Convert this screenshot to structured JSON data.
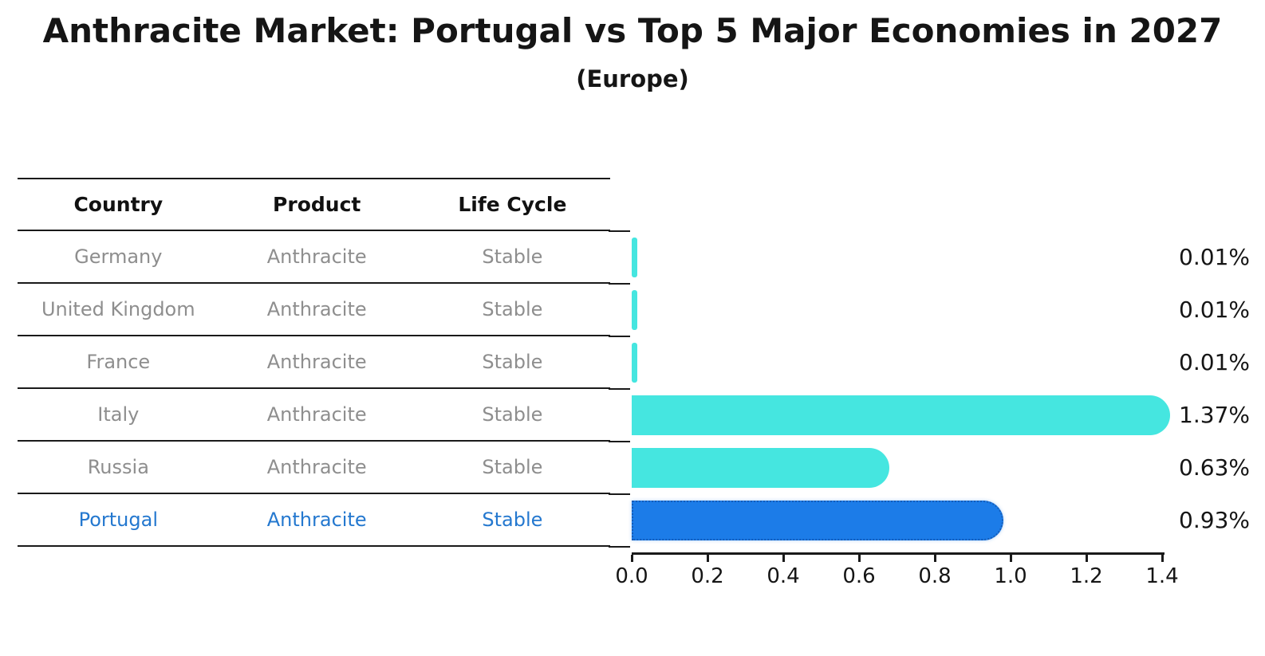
{
  "title": "Anthracite Market: Portugal vs Top 5 Major Economies in 2027",
  "subtitle": "(Europe)",
  "table": {
    "headers": [
      "Country",
      "Product",
      "Life Cycle"
    ],
    "rows": [
      {
        "country": "Germany",
        "product": "Anthracite",
        "life_cycle": "Stable",
        "highlight": false
      },
      {
        "country": "United Kingdom",
        "product": "Anthracite",
        "life_cycle": "Stable",
        "highlight": false
      },
      {
        "country": "France",
        "product": "Anthracite",
        "life_cycle": "Stable",
        "highlight": false
      },
      {
        "country": "Italy",
        "product": "Anthracite",
        "life_cycle": "Stable",
        "highlight": false
      },
      {
        "country": "Russia",
        "product": "Anthracite",
        "life_cycle": "Stable",
        "highlight": false
      },
      {
        "country": "Portugal",
        "product": "Anthracite",
        "life_cycle": "Stable",
        "highlight": true
      }
    ]
  },
  "chart_data": {
    "type": "bar",
    "orientation": "horizontal",
    "categories": [
      "Germany",
      "United Kingdom",
      "France",
      "Italy",
      "Russia",
      "Portugal"
    ],
    "values": [
      0.01,
      0.01,
      0.01,
      1.37,
      0.63,
      0.93
    ],
    "value_labels": [
      "0.01%",
      "0.01%",
      "0.01%",
      "1.37%",
      "0.63%",
      "0.93%"
    ],
    "x_ticks": [
      "0.0",
      "0.2",
      "0.4",
      "0.6",
      "0.8",
      "1.0",
      "1.2",
      "1.4"
    ],
    "xlim": [
      0,
      1.4
    ],
    "grid": false,
    "legend": false,
    "highlight_index": 5
  },
  "colors": {
    "bar": "#45E6E0",
    "highlight_bar": "#1C7CE8",
    "highlight_border": "#145CB8",
    "highlight_text": "#2478CF",
    "body_text": "#8E8E8E",
    "axis": "#1A1A1A"
  }
}
